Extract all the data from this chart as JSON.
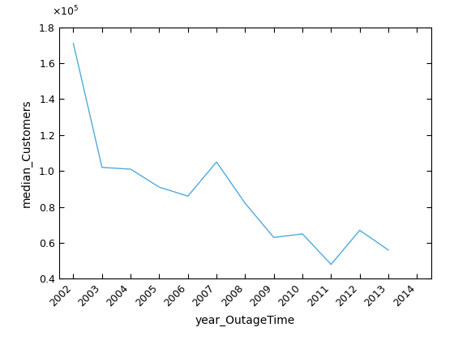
{
  "x": [
    2002,
    2003,
    2004,
    2005,
    2006,
    2007,
    2008,
    2009,
    2010,
    2011,
    2012,
    2013
  ],
  "y": [
    171000,
    102000,
    101000,
    91000,
    86000,
    105000,
    82000,
    63000,
    65000,
    48000,
    67000,
    56000
  ],
  "xlabel": "year_OutageTime",
  "ylabel": "median_Customers",
  "xlim": [
    2001.5,
    2014.5
  ],
  "ylim": [
    40000,
    180000
  ],
  "xticks": [
    2002,
    2003,
    2004,
    2005,
    2006,
    2007,
    2008,
    2009,
    2010,
    2011,
    2012,
    2013,
    2014
  ],
  "yticks": [
    40000,
    60000,
    80000,
    100000,
    120000,
    140000,
    160000,
    180000
  ],
  "ytick_labels": [
    "0.4",
    "0.6",
    "0.8",
    "1.0",
    "1.2",
    "1.4",
    "1.6",
    "1.8"
  ],
  "line_color": "#4daadc",
  "line_width": 1.0,
  "background_color": "#ffffff",
  "xlabel_fontsize": 10,
  "ylabel_fontsize": 10,
  "tick_fontsize": 9,
  "exponent_fontsize": 9
}
